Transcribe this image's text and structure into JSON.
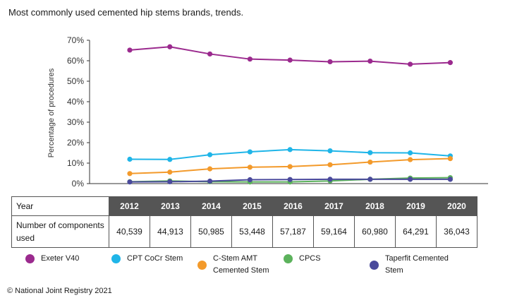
{
  "title": "Most commonly used cemented hip stems brands, trends.",
  "copyright": "© National Joint Registry 2021",
  "table": {
    "year_header": "Year",
    "row_label": "Number of components used",
    "years": [
      "2012",
      "2013",
      "2014",
      "2015",
      "2016",
      "2017",
      "2018",
      "2019",
      "2020"
    ],
    "counts": [
      "40,539",
      "44,913",
      "50,985",
      "53,448",
      "57,187",
      "59,164",
      "60,980",
      "64,291",
      "36,043"
    ]
  },
  "chart_data": {
    "type": "line",
    "title": "Most commonly used cemented hip stems brands, trends.",
    "xlabel": "",
    "ylabel": "Percentage of procedures",
    "x": [
      2012,
      2013,
      2014,
      2015,
      2016,
      2017,
      2018,
      2019,
      2020
    ],
    "ylim": [
      0,
      70
    ],
    "yticks": [
      0,
      10,
      20,
      30,
      40,
      50,
      60,
      70
    ],
    "ytick_labels": [
      "0%",
      "10%",
      "20%",
      "30%",
      "40%",
      "50%",
      "60%",
      "70%"
    ],
    "grid": false,
    "legend_position": "bottom",
    "series": [
      {
        "name": "Exeter V40",
        "color": "#9b2a8e",
        "values": [
          65.2,
          66.8,
          63.3,
          60.8,
          60.3,
          59.5,
          59.8,
          58.3,
          59.1
        ]
      },
      {
        "name": "CPT CoCr Stem",
        "color": "#1fb5e8",
        "values": [
          11.9,
          11.8,
          14.1,
          15.5,
          16.6,
          16.0,
          15.1,
          15.0,
          13.5
        ]
      },
      {
        "name": "C-Stem AMT Cemented Stem",
        "color": "#f39a2b",
        "values": [
          4.9,
          5.6,
          7.2,
          8.0,
          8.3,
          9.2,
          10.5,
          11.7,
          12.2
        ]
      },
      {
        "name": "CPCS",
        "color": "#5cb25c",
        "values": [
          0.9,
          1.3,
          0.9,
          0.8,
          0.8,
          1.3,
          2.1,
          2.7,
          2.9
        ]
      },
      {
        "name": "Taperfit Cemented Stem",
        "color": "#4a4a9c",
        "values": [
          0.8,
          0.9,
          1.2,
          1.9,
          2.0,
          2.1,
          2.1,
          2.1,
          2.1
        ]
      }
    ]
  }
}
